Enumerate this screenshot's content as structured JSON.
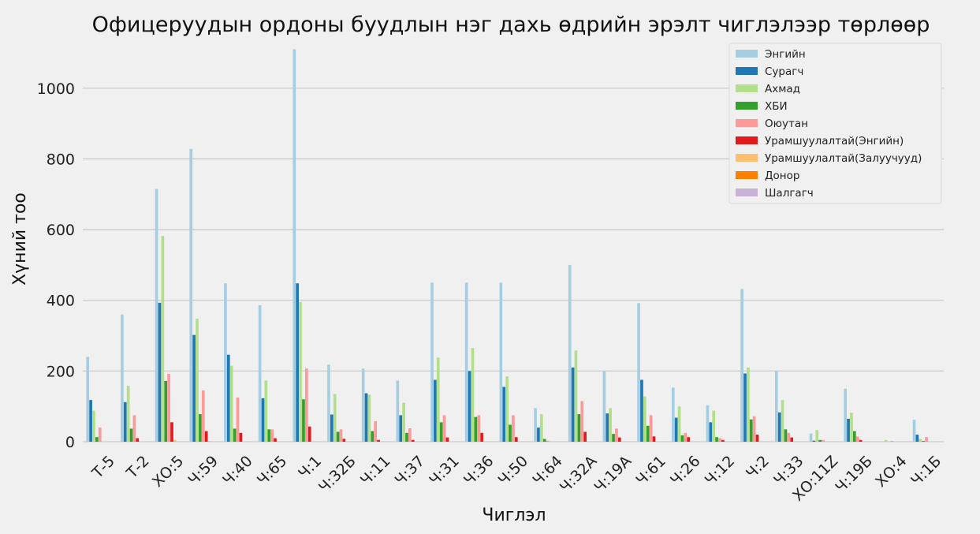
{
  "chart_data": {
    "type": "bar",
    "title": "Офицеруудын ордоны буудлын нэг дахь өдрийн эрэлт чиглэлээр төрлөөр",
    "xlabel": "Чиглэл",
    "ylabel": "Хүний тоо",
    "ylim": [
      0,
      1120
    ],
    "yticks": [
      0,
      200,
      400,
      600,
      800,
      1000
    ],
    "grid": true,
    "legend_position": "top-right",
    "categories": [
      "Т-5",
      "Т-2",
      "ХО:5",
      "Ч:59",
      "Ч:40",
      "Ч:65",
      "Ч:1",
      "Ч:32Б",
      "Ч:11",
      "Ч:37",
      "Ч:31",
      "Ч:36",
      "Ч:50",
      "Ч:64",
      "Ч:32А",
      "Ч:19А",
      "Ч:61",
      "Ч:26",
      "Ч:12",
      "Ч:2",
      "Ч:33",
      "ХО:11Z",
      "Ч:19Б",
      "ХО:4",
      "Ч:1Б"
    ],
    "series": [
      {
        "name": "Энгийн",
        "color": "#a6cee3",
        "values": [
          240,
          360,
          715,
          828,
          448,
          386,
          1110,
          218,
          207,
          173,
          450,
          450,
          450,
          95,
          500,
          200,
          392,
          153,
          103,
          432,
          200,
          23,
          150,
          0,
          62
        ]
      },
      {
        "name": "Сурагч",
        "color": "#1f78b4",
        "values": [
          118,
          112,
          393,
          302,
          246,
          123,
          448,
          77,
          137,
          75,
          175,
          200,
          155,
          40,
          210,
          80,
          175,
          68,
          55,
          193,
          83,
          3,
          65,
          0,
          20
        ]
      },
      {
        "name": "Ахмад",
        "color": "#b2df8a",
        "values": [
          88,
          158,
          582,
          348,
          215,
          173,
          395,
          135,
          133,
          110,
          238,
          265,
          185,
          78,
          258,
          95,
          128,
          100,
          88,
          210,
          118,
          33,
          82,
          5,
          8
        ]
      },
      {
        "name": "ХБИ",
        "color": "#33a02c",
        "values": [
          13,
          37,
          172,
          78,
          37,
          35,
          120,
          28,
          30,
          25,
          55,
          70,
          48,
          8,
          78,
          22,
          45,
          18,
          13,
          63,
          35,
          5,
          30,
          0,
          2
        ]
      },
      {
        "name": "Оюутан",
        "color": "#fb9a99",
        "values": [
          40,
          75,
          192,
          145,
          125,
          35,
          207,
          35,
          58,
          38,
          75,
          75,
          75,
          3,
          115,
          37,
          75,
          25,
          10,
          72,
          25,
          5,
          15,
          2,
          13
        ]
      },
      {
        "name": "Урамшуулалтай(Энгийн)",
        "color": "#e31a1c",
        "values": [
          0,
          10,
          55,
          30,
          25,
          10,
          43,
          8,
          5,
          5,
          12,
          25,
          13,
          0,
          28,
          12,
          15,
          13,
          5,
          20,
          12,
          0,
          5,
          0,
          0
        ]
      },
      {
        "name": "Урамшуулалтай(Залуучууд)",
        "color": "#fdbf6f",
        "values": [
          0,
          0,
          5,
          2,
          0,
          0,
          0,
          0,
          0,
          0,
          0,
          0,
          0,
          0,
          0,
          0,
          0,
          0,
          0,
          0,
          0,
          0,
          0,
          0,
          0
        ]
      },
      {
        "name": "Донор",
        "color": "#ff7f00",
        "values": [
          0,
          0,
          0,
          0,
          0,
          0,
          0,
          0,
          0,
          0,
          0,
          0,
          0,
          0,
          0,
          0,
          0,
          0,
          0,
          0,
          0,
          0,
          0,
          0,
          0
        ]
      },
      {
        "name": "Шалгагч",
        "color": "#cab2d6",
        "values": [
          0,
          0,
          0,
          0,
          0,
          0,
          0,
          0,
          0,
          0,
          0,
          0,
          0,
          0,
          0,
          0,
          0,
          0,
          0,
          0,
          0,
          0,
          0,
          0,
          0
        ]
      }
    ]
  }
}
